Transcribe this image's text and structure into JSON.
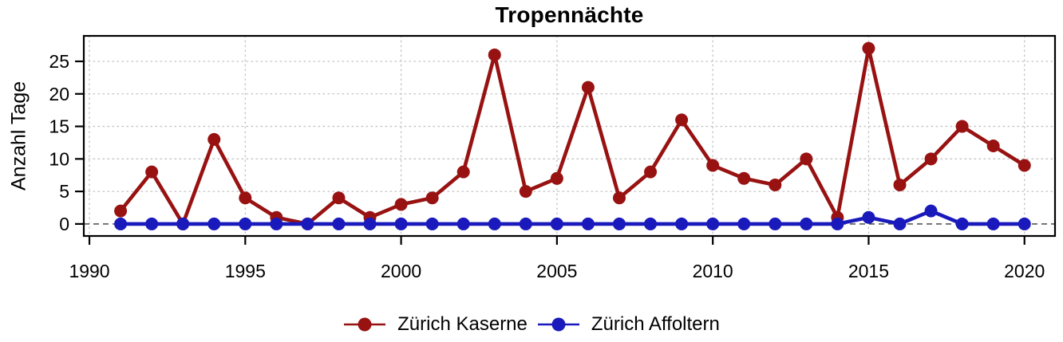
{
  "chart_data": {
    "type": "line",
    "title": "Tropennächte",
    "ylabel": "Anzahl Tage",
    "x": [
      1991,
      1992,
      1993,
      1994,
      1995,
      1996,
      1997,
      1998,
      1999,
      2000,
      2001,
      2002,
      2003,
      2004,
      2005,
      2006,
      2007,
      2008,
      2009,
      2010,
      2011,
      2012,
      2013,
      2014,
      2015,
      2016,
      2017,
      2018,
      2019,
      2020
    ],
    "series": [
      {
        "name": "Zürich Kaserne",
        "color": "#981212",
        "values": [
          2,
          8,
          0,
          13,
          4,
          1,
          0,
          4,
          1,
          3,
          4,
          8,
          26,
          5,
          7,
          21,
          4,
          8,
          16,
          9,
          7,
          6,
          10,
          1,
          27,
          6,
          10,
          15,
          12,
          9
        ]
      },
      {
        "name": "Zürich Affoltern",
        "color": "#1a1abc",
        "values": [
          0,
          0,
          0,
          0,
          0,
          0,
          0,
          0,
          0,
          0,
          0,
          0,
          0,
          0,
          0,
          0,
          0,
          0,
          0,
          0,
          0,
          0,
          0,
          0,
          1,
          0,
          2,
          0,
          0,
          0
        ]
      }
    ],
    "xticks": [
      1990,
      1995,
      2000,
      2005,
      2010,
      2015,
      2020
    ],
    "yticks": [
      0,
      5,
      10,
      15,
      20,
      25
    ],
    "xlim": [
      1989.82,
      2020.98
    ],
    "ylim": [
      -1.85,
      28.92
    ],
    "grid": "dotted",
    "grid_color": "#c3c3c3",
    "zero_line": {
      "y": 0,
      "color": "#3a3a3a",
      "style": "dashed"
    },
    "axis_color": "#000000",
    "legend_position": "bottom"
  }
}
